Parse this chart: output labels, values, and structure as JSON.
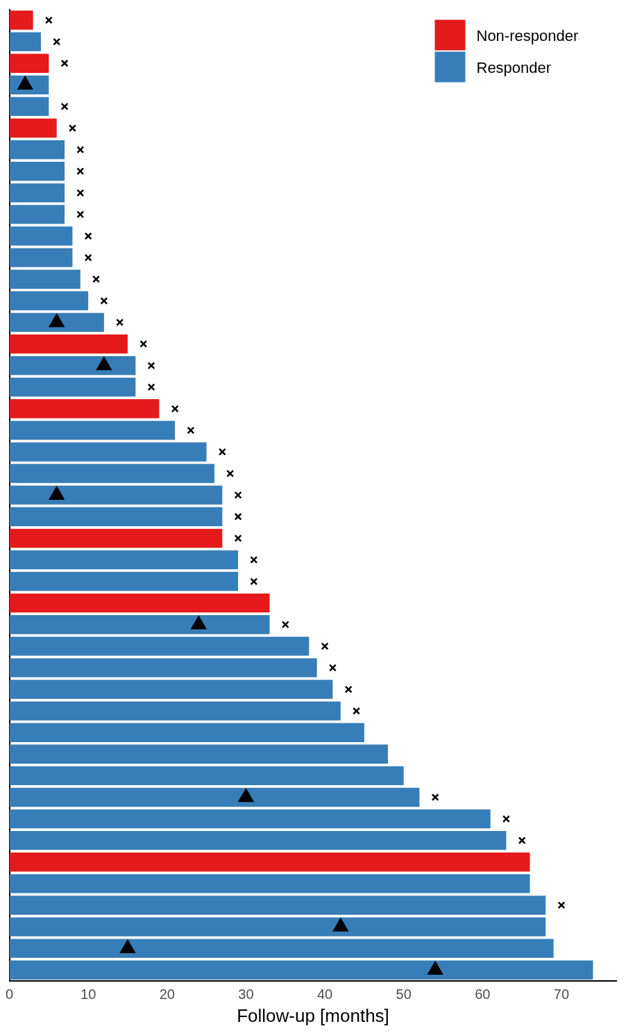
{
  "chart_data": {
    "type": "bar",
    "orientation": "horizontal",
    "xlabel": "Follow-up [months]",
    "categories": [
      null,
      null,
      null,
      null,
      null,
      null,
      null,
      null,
      null,
      null,
      null,
      null,
      null,
      null,
      null,
      null,
      null,
      null,
      null,
      null,
      null,
      null,
      null,
      null,
      null,
      null,
      null,
      null,
      null,
      null,
      null,
      null,
      null,
      null,
      null,
      null,
      null,
      null,
      null,
      null,
      null,
      null,
      null,
      null,
      null
    ],
    "series": [
      {
        "name": "Non-responder",
        "color": "#e41a1c",
        "values": [
          3,
          null,
          5,
          null,
          null,
          6,
          null,
          null,
          null,
          null,
          null,
          null,
          null,
          null,
          null,
          15,
          null,
          null,
          19,
          null,
          null,
          null,
          null,
          null,
          27,
          null,
          null,
          33,
          null,
          null,
          null,
          null,
          null,
          null,
          null,
          null,
          null,
          null,
          null,
          66,
          null,
          null,
          null,
          null,
          null
        ]
      },
      {
        "name": "Responder",
        "color": "#377eb8",
        "values": [
          null,
          4,
          null,
          5,
          5,
          null,
          7,
          7,
          7,
          7,
          8,
          8,
          9,
          10,
          12,
          null,
          16,
          16,
          null,
          21,
          25,
          26,
          27,
          27,
          null,
          29,
          29,
          null,
          33,
          38,
          39,
          41,
          42,
          45,
          48,
          50,
          52,
          61,
          63,
          null,
          66,
          68,
          68,
          69,
          74
        ]
      },
      {
        "type": "scatter",
        "marker": "cross",
        "color": "#000000",
        "values": [
          5,
          6,
          7,
          null,
          7,
          8,
          9,
          9,
          9,
          9,
          10,
          10,
          11,
          12,
          14,
          17,
          18,
          18,
          21,
          23,
          27,
          28,
          29,
          29,
          29,
          31,
          31,
          null,
          35,
          40,
          41,
          43,
          44,
          null,
          null,
          null,
          54,
          63,
          65,
          null,
          null,
          70,
          null,
          null,
          null
        ]
      },
      {
        "type": "scatter",
        "marker": "triangle",
        "color": "#000000",
        "values": [
          null,
          null,
          null,
          2,
          null,
          null,
          null,
          null,
          null,
          null,
          null,
          null,
          null,
          null,
          6,
          null,
          12,
          null,
          null,
          null,
          null,
          null,
          6,
          null,
          null,
          null,
          null,
          null,
          24,
          null,
          null,
          null,
          null,
          null,
          null,
          null,
          30,
          null,
          null,
          null,
          null,
          null,
          42,
          15,
          54
        ]
      }
    ],
    "xlim": [
      0,
      77
    ],
    "xticks": [
      0,
      10,
      20,
      30,
      40,
      50,
      60,
      70
    ],
    "grid": false,
    "legend": "top right",
    "tick_labels": "x"
  }
}
